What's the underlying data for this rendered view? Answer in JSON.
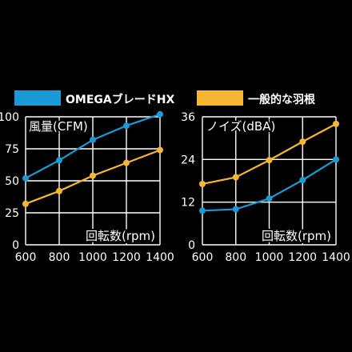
{
  "legend": [
    {
      "label": "OMEGAブレードHX",
      "color": "#1a9ad6"
    },
    {
      "label": "一般的な羽根",
      "color": "#f5b731"
    }
  ],
  "chart_data": [
    {
      "type": "line",
      "title": "",
      "ylabel": "風量(CFM)",
      "xlabel": "回転数(rpm)",
      "x": [
        600,
        800,
        1000,
        1200,
        1400
      ],
      "xlim": [
        600,
        1400
      ],
      "ylim": [
        0,
        100
      ],
      "yticks": [
        0,
        25,
        50,
        75,
        100
      ],
      "grid": true,
      "series": [
        {
          "name": "OMEGAブレードHX",
          "color": "#1a9ad6",
          "values": [
            52,
            66,
            82,
            93,
            102
          ]
        },
        {
          "name": "一般的な羽根",
          "color": "#f5b731",
          "values": [
            32,
            42,
            54,
            64,
            74
          ]
        }
      ]
    },
    {
      "type": "line",
      "title": "",
      "ylabel": "ノイズ(dBA)",
      "xlabel": "回転数(rpm)",
      "x": [
        600,
        800,
        1000,
        1200,
        1400
      ],
      "xlim": [
        600,
        1400
      ],
      "ylim": [
        0,
        36
      ],
      "yticks": [
        0,
        12,
        24,
        36
      ],
      "grid": true,
      "series": [
        {
          "name": "OMEGAブレードHX",
          "color": "#1a9ad6",
          "values": [
            9.6,
            10.0,
            13.0,
            18.2,
            24.0
          ]
        },
        {
          "name": "一般的な羽根",
          "color": "#f5b731",
          "values": [
            17.1,
            19.0,
            23.8,
            29.0,
            34.0
          ]
        }
      ]
    }
  ]
}
